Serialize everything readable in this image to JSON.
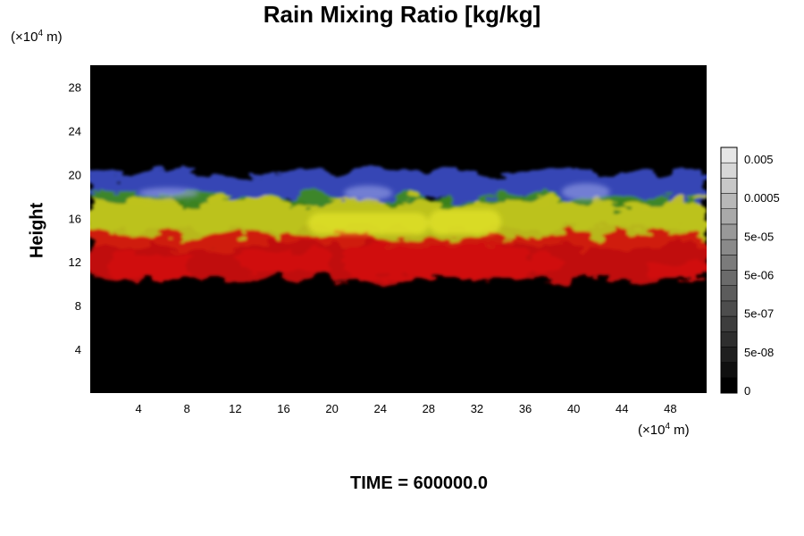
{
  "chart_data": {
    "type": "heatmap",
    "title": "Rain Mixing Ratio [kg/kg]",
    "ylabel": "Height",
    "xlabel": "",
    "x_unit_prefix": "(×10",
    "x_unit_exp": "4",
    "x_unit_suffix": " m)",
    "y_unit_prefix": "(×10",
    "y_unit_exp": "4",
    "y_unit_suffix": " m)",
    "xlim": [
      0,
      51
    ],
    "ylim": [
      0,
      30
    ],
    "x_ticks": [
      4,
      8,
      12,
      16,
      20,
      24,
      28,
      32,
      36,
      40,
      44,
      48
    ],
    "y_ticks": [
      4,
      8,
      12,
      16,
      20,
      24,
      28
    ],
    "colorbar": {
      "tick_labels": [
        "0.005",
        "0.0005",
        "5e-05",
        "5e-06",
        "5e-07",
        "5e-08",
        "0"
      ],
      "levels": 16
    },
    "layers": [
      {
        "band": "blue",
        "color": "#3a4cc4",
        "y_range": [
          17.5,
          20.2
        ]
      },
      {
        "band": "green",
        "color": "#3f8c1f",
        "y_range": [
          15.0,
          18.0
        ]
      },
      {
        "band": "yellow",
        "color": "#c8c81e",
        "y_range": [
          13.5,
          17.5
        ]
      },
      {
        "band": "red",
        "color": "#d01010",
        "y_range": [
          10.5,
          14.5
        ]
      }
    ],
    "background_color": "#000000"
  },
  "footer": {
    "label": "TIME = 600000.0"
  }
}
